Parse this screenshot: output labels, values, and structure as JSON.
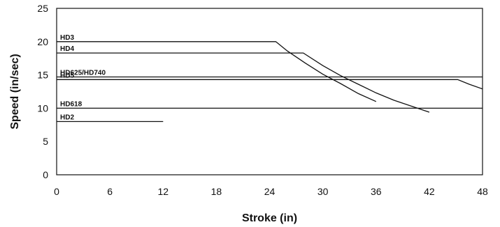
{
  "chart_data": {
    "type": "line",
    "title": "",
    "xlabel": "Stroke (in)",
    "ylabel": "Speed (in/sec)",
    "xlim": [
      0,
      48
    ],
    "ylim": [
      0,
      25
    ],
    "xticks": [
      0,
      6,
      12,
      18,
      24,
      30,
      36,
      42,
      48
    ],
    "yticks": [
      0,
      5,
      10,
      15,
      20,
      25
    ],
    "grid": false,
    "legend": "inline labels",
    "line_color": "#111111",
    "series": [
      {
        "name": "HD3",
        "points": [
          [
            0,
            20
          ],
          [
            24.7,
            20
          ],
          [
            26,
            18.6
          ],
          [
            28,
            16.8
          ],
          [
            30,
            15.1
          ],
          [
            32,
            13.7
          ],
          [
            34,
            12.2
          ],
          [
            36,
            11
          ]
        ]
      },
      {
        "name": "HD4",
        "points": [
          [
            0,
            18.3
          ],
          [
            27.8,
            18.3
          ],
          [
            30,
            16.4
          ],
          [
            32,
            14.9
          ],
          [
            34,
            13.6
          ],
          [
            36,
            12.3
          ],
          [
            38,
            11.2
          ],
          [
            40,
            10.3
          ],
          [
            42,
            9.4
          ]
        ]
      },
      {
        "name": "HD625/HD740",
        "points": [
          [
            0,
            14.7
          ],
          [
            48,
            14.7
          ]
        ]
      },
      {
        "name": "HD5",
        "points": [
          [
            0,
            14.3
          ],
          [
            45.2,
            14.3
          ],
          [
            46.5,
            13.6
          ],
          [
            48,
            12.9
          ]
        ]
      },
      {
        "name": "HD618",
        "points": [
          [
            0,
            10
          ],
          [
            48,
            10
          ]
        ]
      },
      {
        "name": "HD2",
        "points": [
          [
            0,
            8
          ],
          [
            12,
            8
          ]
        ]
      }
    ]
  }
}
